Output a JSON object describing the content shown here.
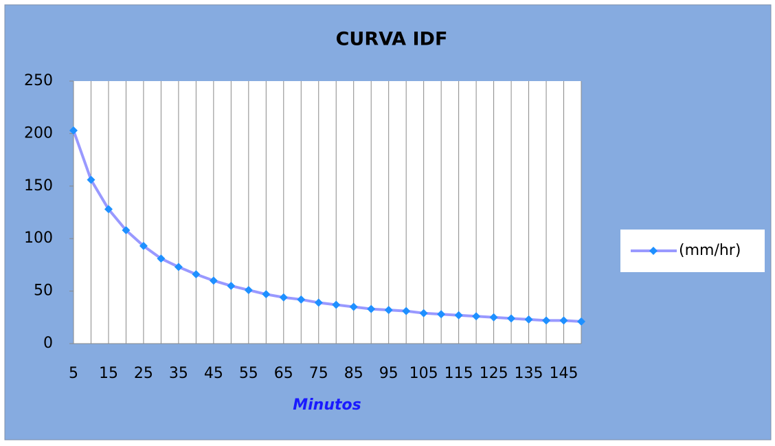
{
  "chart_data": {
    "type": "line",
    "title": "CURVA IDF",
    "x_label": "Minutos",
    "categories": [
      5,
      null,
      15,
      null,
      25,
      null,
      35,
      null,
      45,
      null,
      55,
      null,
      65,
      null,
      75,
      null,
      85,
      null,
      95,
      null,
      105,
      null,
      115,
      null,
      125,
      null,
      135,
      null,
      145,
      null
    ],
    "series": [
      {
        "name": "(mm/hr)",
        "color": "#9999ff",
        "marker_color": "#1e90ff",
        "values": [
          203,
          156,
          128,
          108,
          93,
          81,
          73,
          66,
          60,
          55,
          51,
          47,
          44,
          42,
          39,
          37,
          35,
          33,
          32,
          31,
          29,
          28,
          27,
          26,
          25,
          24,
          23,
          22,
          22,
          21
        ]
      }
    ],
    "ylim": [
      0,
      250
    ],
    "yticks": [
      0,
      50,
      100,
      150,
      200,
      250
    ],
    "grid": "x",
    "legend": "right"
  }
}
